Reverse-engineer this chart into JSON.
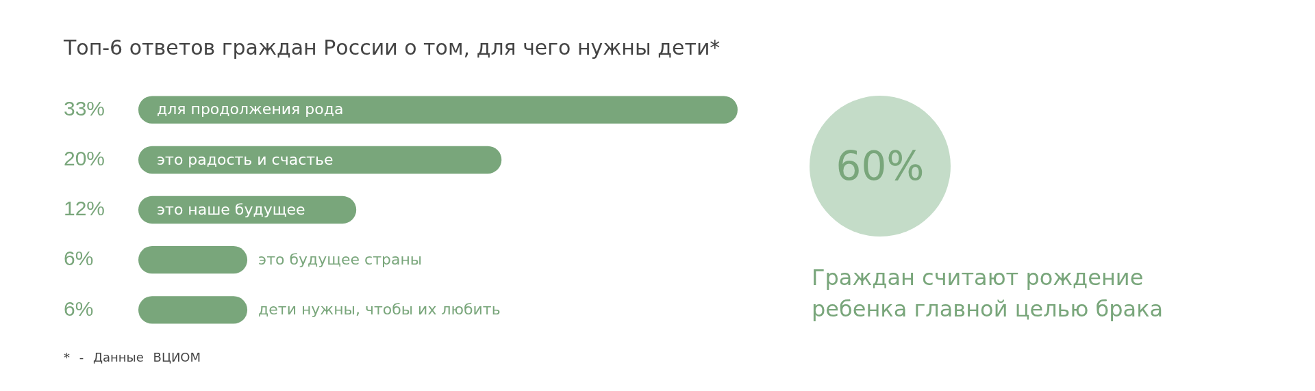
{
  "chart_data": [
    {
      "type": "bar",
      "orientation": "horizontal",
      "title": "Топ-6 ответов граждан России о том, для чего нужны дети*",
      "categories": [
        "для продолжения рода",
        "это радость и счастье",
        "это наше будущее",
        "это будущее страны",
        "дети нужны, чтобы их любить"
      ],
      "values": [
        33,
        20,
        12,
        6,
        6
      ],
      "value_labels": [
        "33%",
        "20%",
        "12%",
        "6%",
        "6%"
      ],
      "color": "#79a67b",
      "tick_labels": "y",
      "annotations": [
        "* - Данные ВЦИОМ"
      ]
    },
    {
      "type": "other",
      "annotations": [
        "60%",
        "Граждан считают рождение ребенка главной целью брака"
      ]
    }
  ]
}
